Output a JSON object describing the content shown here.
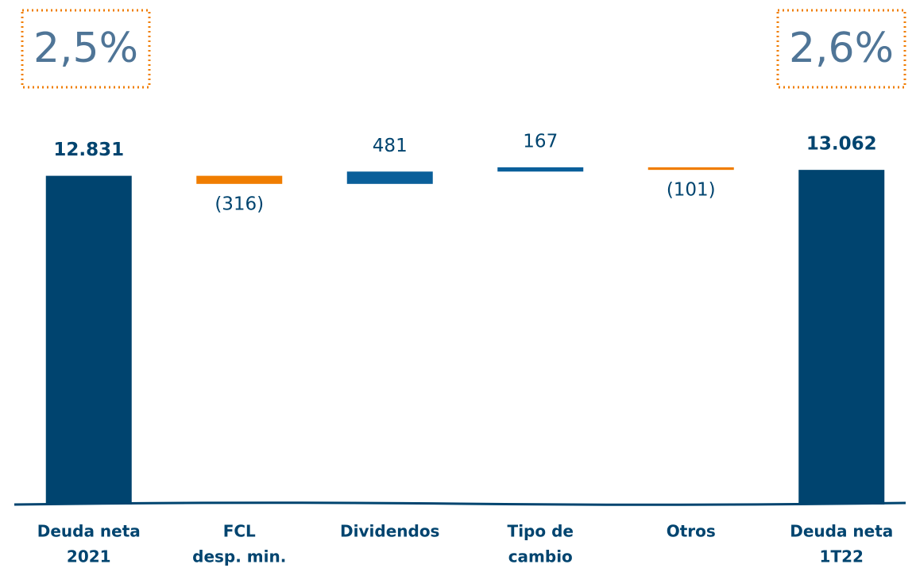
{
  "chart_data": {
    "type": "waterfall",
    "categories": [
      [
        "Deuda neta",
        "2021"
      ],
      [
        "FCL",
        "desp. min."
      ],
      [
        "Dividendos"
      ],
      [
        "Tipo de",
        "cambio"
      ],
      [
        "Otros"
      ],
      [
        "Deuda neta",
        "1T22"
      ]
    ],
    "values": [
      12831,
      -316,
      481,
      167,
      -101,
      13062
    ],
    "value_labels": [
      "12.831",
      "(316)",
      "481",
      "167",
      "(101)",
      "13.062"
    ],
    "measures": [
      "total",
      "relative",
      "relative",
      "relative",
      "relative",
      "total"
    ],
    "colors": {
      "total": "#00446f",
      "increase": "#0a5f9a",
      "decrease": "#f07d00"
    },
    "ylim": [
      0,
      13500
    ],
    "annotations": [
      "2,5%",
      "2,6%"
    ]
  }
}
